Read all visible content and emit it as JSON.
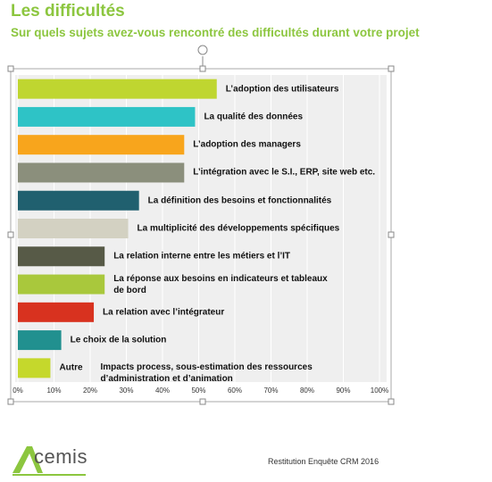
{
  "slide": {
    "title": "Les difficultés",
    "subtitle": "Sur quels sujets avez-vous rencontré des difficultés durant votre projet",
    "footer": "Restitution Enquête CRM 2016",
    "logo": "cemis"
  },
  "chart_data": {
    "type": "bar",
    "orientation": "horizontal",
    "categories": [
      "L’adoption des utilisateurs",
      "La qualité des données",
      "L’adoption des managers",
      "L’intégration avec le S.I., ERP, site web etc.",
      "La définition des besoins et fonctionnalités",
      "La multiplicité des développements spécifiques",
      "La relation interne entre les métiers et l’IT",
      "La réponse aux besoins en indicateurs et tableaux de bord",
      "La relation avec l’intégrateur",
      "Le choix de la solution",
      "Autre"
    ],
    "values": [
      55,
      49,
      46,
      46,
      33.5,
      30.5,
      24,
      24,
      21,
      12,
      9
    ],
    "colors": [
      "#bfd630",
      "#2ec3c6",
      "#f8a51c",
      "#8b8f7c",
      "#20606f",
      "#d3d1c2",
      "#575a47",
      "#a9c83c",
      "#d8321f",
      "#21908f",
      "#c5d82c"
    ],
    "annotation": "Impacts process, sous-estimation des ressources d’administration et d’animation",
    "xlim": [
      0,
      100
    ],
    "xticks": [
      {
        "value": 0,
        "label": "0%"
      },
      {
        "value": 10,
        "label": "10%"
      },
      {
        "value": 20,
        "label": "20%"
      },
      {
        "value": 30,
        "label": "30%"
      },
      {
        "value": 40,
        "label": "40%"
      },
      {
        "value": 50,
        "label": "50%"
      },
      {
        "value": 60,
        "label": "60%"
      },
      {
        "value": 70,
        "label": "70%"
      },
      {
        "value": 80,
        "label": "80%"
      },
      {
        "value": 90,
        "label": "90%"
      },
      {
        "value": 100,
        "label": "100%"
      }
    ],
    "grid": true
  }
}
